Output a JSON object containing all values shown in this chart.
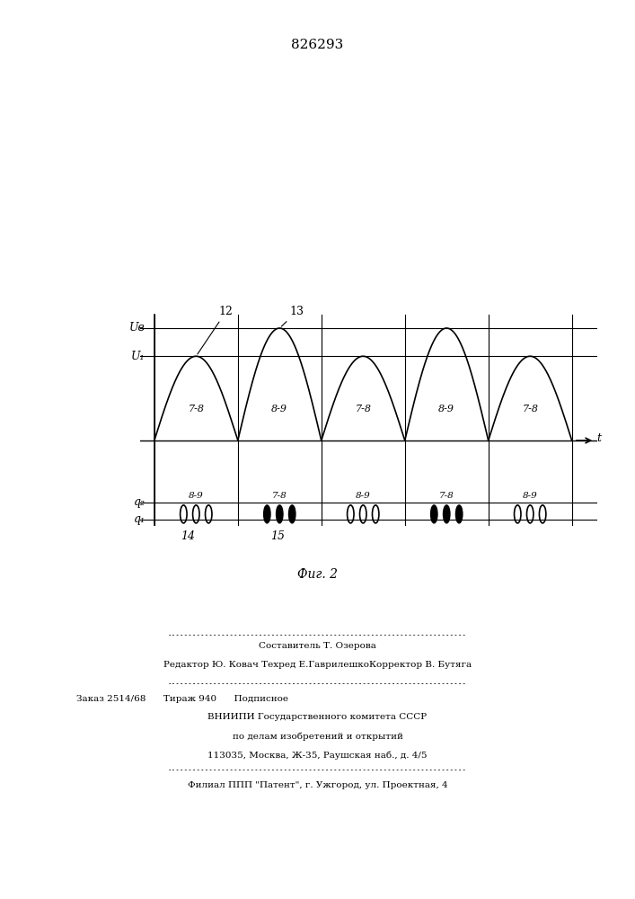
{
  "title": "826293",
  "fig_caption": "Фиг. 2",
  "background_color": "#ffffff",
  "text_color": "#000000",
  "U_B": 1.0,
  "U_1": 0.75,
  "q2_level": -0.55,
  "q1_level": -0.7,
  "period": 2.0,
  "num_periods": 5,
  "wave_labels_upper": [
    "7-8",
    "8-9",
    "7-8",
    "8-9",
    "7-8"
  ],
  "wave_labels_lower": [
    "8-9",
    "7-8",
    "8-9",
    "7-8",
    "8-9"
  ],
  "dot_filled": [
    false,
    true,
    false,
    true,
    false
  ],
  "label_12": "12",
  "label_13": "13",
  "label_14": "14",
  "label_15": "15",
  "label_UB": "Uв",
  "label_U1": "U₁",
  "label_q2": "q₂",
  "label_q1": "q₁",
  "label_t": "t",
  "footer_line1": "Составитель Т. Озерова",
  "footer_line2": "Редактор Ю. Ковач Техред Е.ГаврилешкоКорректор В. Бутяга",
  "footer_line3": "Заказ 2514/68      Тираж 940      Подписное",
  "footer_line4": "ВНИИПИ Государственного комитета СССР",
  "footer_line5": "по делам изобретений и открытий",
  "footer_line6": "113035, Москва, Ж-35, Раушская наб., д. 4/5",
  "footer_line7": "Филиал ППП \"Патент\", г. Ужгород, ул. Проектная, 4"
}
